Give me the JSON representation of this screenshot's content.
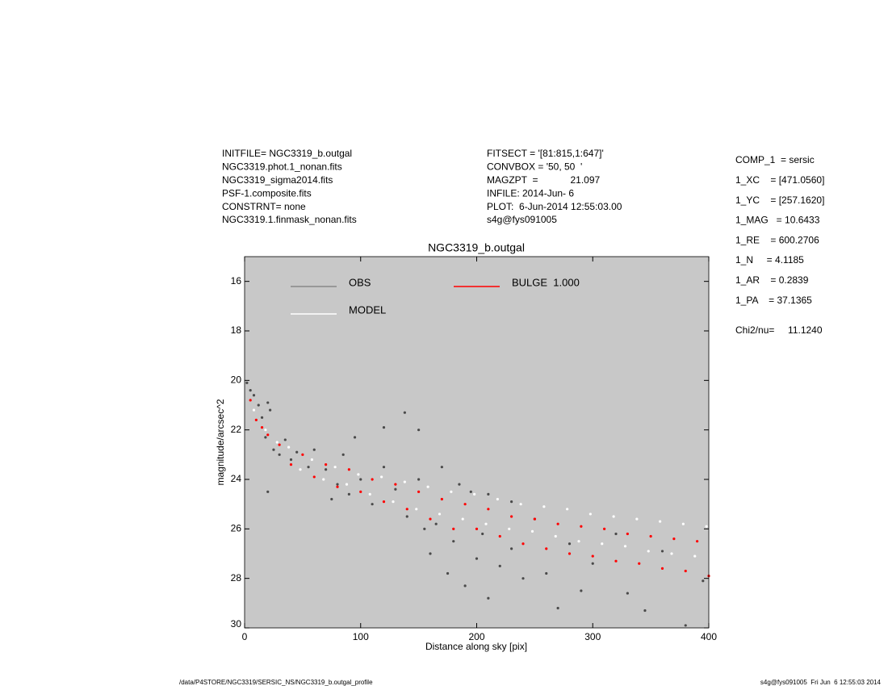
{
  "header": {
    "left": [
      "INITFILE= NGC3319_b.outgal",
      "NGC3319.phot.1_nonan.fits",
      "NGC3319_sigma2014.fits",
      "PSF-1.composite.fits",
      "CONSTRNT= none",
      "NGC3319.1.finmask_nonan.fits"
    ],
    "middle": [
      "FITSECT = '[81:815,1:647]'",
      "CONVBOX = '50, 50  '",
      "MAGZPT  =            21.097",
      "INFILE: 2014-Jun- 6",
      "PLOT:  6-Jun-2014 12:55:03.00",
      "s4g@fys091005"
    ],
    "right": [
      "COMP_1  = sersic",
      "1_XC    = [471.0560]",
      "1_YC    = [257.1620]",
      "1_MAG   = 10.6433",
      "1_RE    = 600.2706",
      "1_N     = 4.1185",
      "1_AR    = 0.2839",
      "1_PA    = 37.1365"
    ],
    "chi2": "Chi2/nu=     11.1240"
  },
  "footer": {
    "left": "/data/P4STORE/NGC3319/SERSIC_NS/NGC3319_b.outgal_profile",
    "right": "s4g@fys091005  Fri Jun  6 12:55:03 2014"
  },
  "chart_data": {
    "type": "scatter",
    "title": "NGC3319_b.outgal",
    "x_label": "Distance along sky [pix]",
    "y_label": "magnitude/arcsec^2",
    "xlim": [
      0,
      400
    ],
    "xticks": [
      0,
      100,
      200,
      300,
      400
    ],
    "ylim": [
      30,
      15
    ],
    "yticks": [
      16,
      18,
      20,
      22,
      24,
      26,
      28,
      30
    ],
    "background": "#c8c8c8",
    "series": [
      {
        "name": "OBS",
        "color": "#4a4a4a",
        "x": [
          2,
          5,
          8,
          12,
          15,
          18,
          20,
          22,
          25,
          30,
          35,
          40,
          45,
          20,
          55,
          60,
          70,
          80,
          85,
          90,
          95,
          100,
          110,
          120,
          120,
          130,
          140,
          150,
          155,
          160,
          165,
          170,
          175,
          180,
          185,
          190,
          195,
          200,
          205,
          210,
          220,
          230,
          240,
          250,
          260,
          270,
          280,
          290,
          300,
          320,
          330,
          345,
          360,
          380,
          395,
          150,
          138,
          210,
          230,
          75
        ],
        "values": [
          20.1,
          20.4,
          20.6,
          21.0,
          21.5,
          22.3,
          20.9,
          21.2,
          22.8,
          23.0,
          22.4,
          23.2,
          22.9,
          24.5,
          23.5,
          22.8,
          23.6,
          24.2,
          23.0,
          24.6,
          22.3,
          24.0,
          25.0,
          23.5,
          21.9,
          24.4,
          25.5,
          24.0,
          26.0,
          27.0,
          25.8,
          23.5,
          27.8,
          26.5,
          24.2,
          28.3,
          24.5,
          27.2,
          26.2,
          28.8,
          27.5,
          26.8,
          28.0,
          25.6,
          27.8,
          29.2,
          26.6,
          28.5,
          27.4,
          26.2,
          28.6,
          29.3,
          26.9,
          29.9,
          28.1,
          22.0,
          21.3,
          24.6,
          24.9,
          24.8
        ]
      },
      {
        "name": "MODEL",
        "color": "#ffffff",
        "x": [
          8,
          18,
          28,
          38,
          48,
          58,
          68,
          78,
          88,
          98,
          108,
          118,
          128,
          138,
          148,
          158,
          168,
          178,
          188,
          198,
          208,
          218,
          228,
          238,
          248,
          258,
          268,
          278,
          288,
          298,
          308,
          318,
          328,
          338,
          348,
          358,
          368,
          378,
          388,
          398
        ],
        "values": [
          21.2,
          22.0,
          22.5,
          22.7,
          23.6,
          23.2,
          24.0,
          23.5,
          24.2,
          23.8,
          24.6,
          23.9,
          24.9,
          24.1,
          25.2,
          24.3,
          25.4,
          24.5,
          25.6,
          24.6,
          25.8,
          24.8,
          26.0,
          25.0,
          26.1,
          25.1,
          26.3,
          25.2,
          26.5,
          25.4,
          26.6,
          25.5,
          26.7,
          25.6,
          26.9,
          25.7,
          27.0,
          25.8,
          27.1,
          25.9
        ]
      },
      {
        "name": "BULGE  1.000",
        "color": "#ff0000",
        "x": [
          5,
          10,
          15,
          20,
          30,
          40,
          50,
          60,
          70,
          80,
          90,
          100,
          110,
          120,
          130,
          140,
          150,
          160,
          170,
          180,
          190,
          200,
          210,
          220,
          230,
          240,
          250,
          260,
          270,
          280,
          290,
          300,
          310,
          320,
          330,
          340,
          350,
          360,
          370,
          380,
          390,
          400
        ],
        "values": [
          20.8,
          21.6,
          21.9,
          22.2,
          22.6,
          23.4,
          23.0,
          23.9,
          23.4,
          24.3,
          23.6,
          24.5,
          24.0,
          24.9,
          24.2,
          25.2,
          24.5,
          25.6,
          24.8,
          26.0,
          25.0,
          26.0,
          25.2,
          26.3,
          25.5,
          26.6,
          25.6,
          26.8,
          25.8,
          27.0,
          25.9,
          27.1,
          26.0,
          27.3,
          26.2,
          27.4,
          26.3,
          27.6,
          26.4,
          27.7,
          26.5,
          27.9
        ]
      }
    ]
  }
}
